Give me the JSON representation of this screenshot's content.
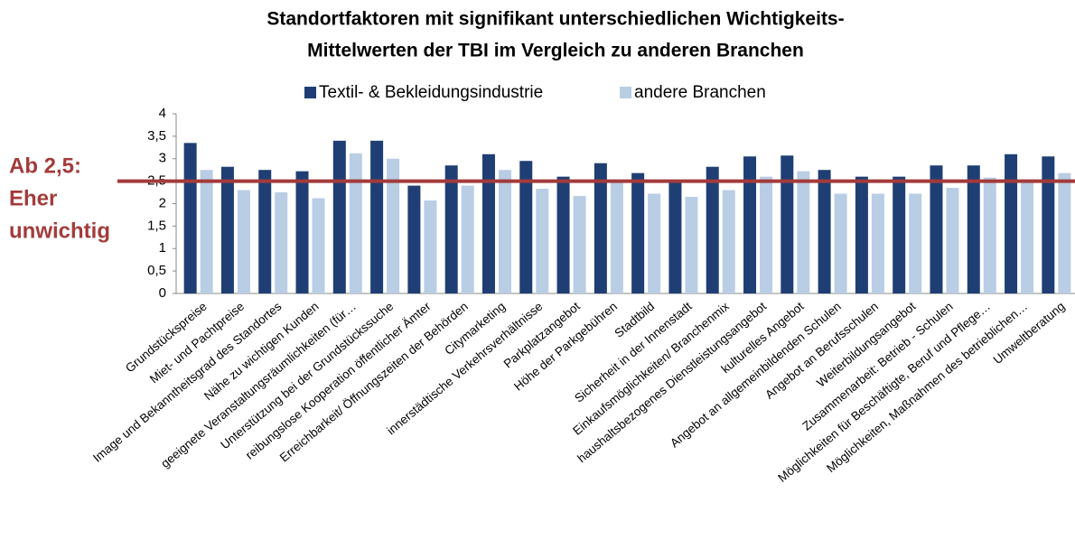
{
  "chart_data": {
    "type": "bar",
    "title": [
      "Standortfaktoren mit signifikant unterschiedlichen Wichtigkeits-",
      "Mittelwerten der TBI im Vergleich zu anderen Branchen"
    ],
    "categories": [
      "Grundstückspreise",
      "Miet- und Pachtpreise",
      "Image und Bekanntheitsgrad des Standortes",
      "Nähe zu wichtigen Kunden",
      "geeignete Veranstaltungsräumlichkeiten (für…",
      "Unterstützung bei der Grundstückssuche",
      "reibungslose Kooperation öffentlicher Ämter",
      "Erreichbarkeit/ Öffnungszeiten der Behörden",
      "Citymarketing",
      "innerstädtische Verkehrsverhältnisse",
      "Parkplatzangebot",
      "Höhe der Parkgebühren",
      "Stadtbild",
      "Sicherheit in der Innenstadt",
      "Einkaufsmöglichkeiten/ Branchenmix",
      "haushaltsbezogenes Dienstleistungsangebot",
      "kulturelles Angebot",
      "Angebot an allgemeinbildenden Schulen",
      "Angebot an Berufsschulen",
      "Weiterbildungsangebot",
      "Zusammenarbeit: Betrieb - Schulen",
      "Möglichkeiten für Beschäftigte, Beruf und Pflege…",
      "Möglichkeiten, Maßnahmen des betrieblichen…",
      "Umweltberatung"
    ],
    "series": [
      {
        "name": "Textil- & Bekleidungsindustrie",
        "color": "#1f3f74",
        "values": [
          3.35,
          2.82,
          2.75,
          2.72,
          3.4,
          3.4,
          2.4,
          2.85,
          3.1,
          2.95,
          2.6,
          2.9,
          2.68,
          2.52,
          2.82,
          3.05,
          3.07,
          2.75,
          2.6,
          2.6,
          2.85,
          2.85,
          3.1,
          3.05
        ]
      },
      {
        "name": "andere Branchen",
        "color": "#b9cde5",
        "values": [
          2.75,
          2.3,
          2.25,
          2.12,
          3.12,
          3.0,
          2.07,
          2.4,
          2.75,
          2.33,
          2.17,
          2.5,
          2.22,
          2.15,
          2.3,
          2.6,
          2.72,
          2.22,
          2.22,
          2.22,
          2.35,
          2.58,
          2.5,
          2.68
        ]
      }
    ],
    "ylim": [
      0,
      4
    ],
    "yticks": [
      0,
      {
        "value": 0.5,
        "label": "0,5"
      },
      1,
      {
        "value": 1.5,
        "label": "1,5"
      },
      2,
      {
        "value": 2.5,
        "label": "2,5"
      },
      3,
      {
        "value": 3.5,
        "label": "3,5"
      },
      4
    ],
    "grid": false,
    "legend": "top",
    "annotation": {
      "lines": [
        "Ab 2,5:",
        "Eher",
        "unwichtig"
      ],
      "value": 2.5,
      "color": "#a33b3b"
    }
  }
}
